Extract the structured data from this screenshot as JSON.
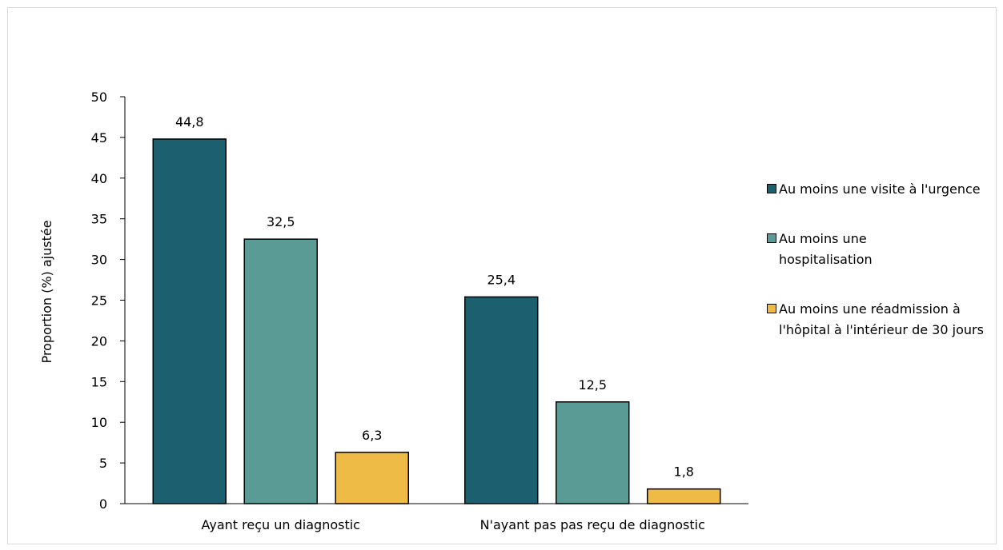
{
  "chart_data": {
    "type": "bar",
    "categories": [
      "Ayant reçu un diagnostic",
      "N'ayant pas pas reçu de diagnostic"
    ],
    "series": [
      {
        "name": "Au moins une visite à l'urgence",
        "values": [
          44.8,
          25.4
        ],
        "labels": [
          "44,8",
          "25,4"
        ],
        "color": "#1c5f6e"
      },
      {
        "name": "Au moins une hospitalisation",
        "values": [
          32.5,
          12.5
        ],
        "labels": [
          "32,5",
          "12,5"
        ],
        "color": "#5a9b95"
      },
      {
        "name": "Au moins une réadmission à l'hôpital à l'intérieur de 30 jours",
        "values": [
          6.3,
          1.8
        ],
        "labels": [
          "6,3",
          "1,8"
        ],
        "color": "#efbb47"
      }
    ],
    "ylabel": "Proportion (%) ajustée",
    "xlabel": "",
    "ylim": [
      0,
      50
    ],
    "yticks": [
      0,
      5,
      10,
      15,
      20,
      25,
      30,
      35,
      40,
      45,
      50
    ],
    "grid": false,
    "legend_position": "right"
  }
}
